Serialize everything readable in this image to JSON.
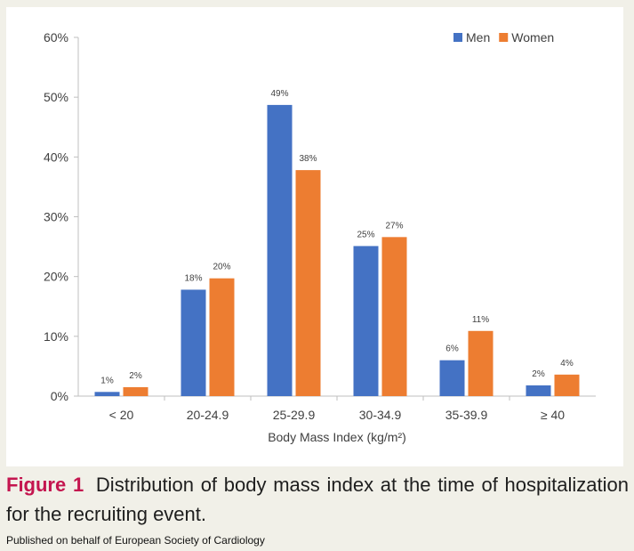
{
  "chart_data": {
    "type": "bar",
    "title": "",
    "xlabel": "Body Mass Index (kg/m²)",
    "ylabel": "",
    "ylim": [
      0,
      60
    ],
    "yticks": [
      "0%",
      "10%",
      "20%",
      "30%",
      "40%",
      "50%",
      "60%"
    ],
    "grid": false,
    "legend_position": "top-right",
    "categories": [
      "< 20",
      "20-24.9",
      "25-29.9",
      "30-34.9",
      "35-39.9",
      "≥ 40"
    ],
    "series": [
      {
        "name": "Men",
        "color": "#4472c4",
        "values": [
          0.7,
          17.8,
          48.7,
          25.1,
          6.0,
          1.8
        ],
        "labels": [
          "1%",
          "18%",
          "49%",
          "25%",
          "6%",
          "2%"
        ]
      },
      {
        "name": "Women",
        "color": "#ed7d31",
        "values": [
          1.5,
          19.7,
          37.8,
          26.6,
          10.9,
          3.6
        ],
        "labels": [
          "2%",
          "20%",
          "38%",
          "27%",
          "11%",
          "4%"
        ]
      }
    ]
  },
  "caption": {
    "label": "Figure 1",
    "text": "Distribution of body mass index at the time of hospitalization for the recruiting event."
  },
  "publisher": "Published on behalf of European Society of Cardiology"
}
